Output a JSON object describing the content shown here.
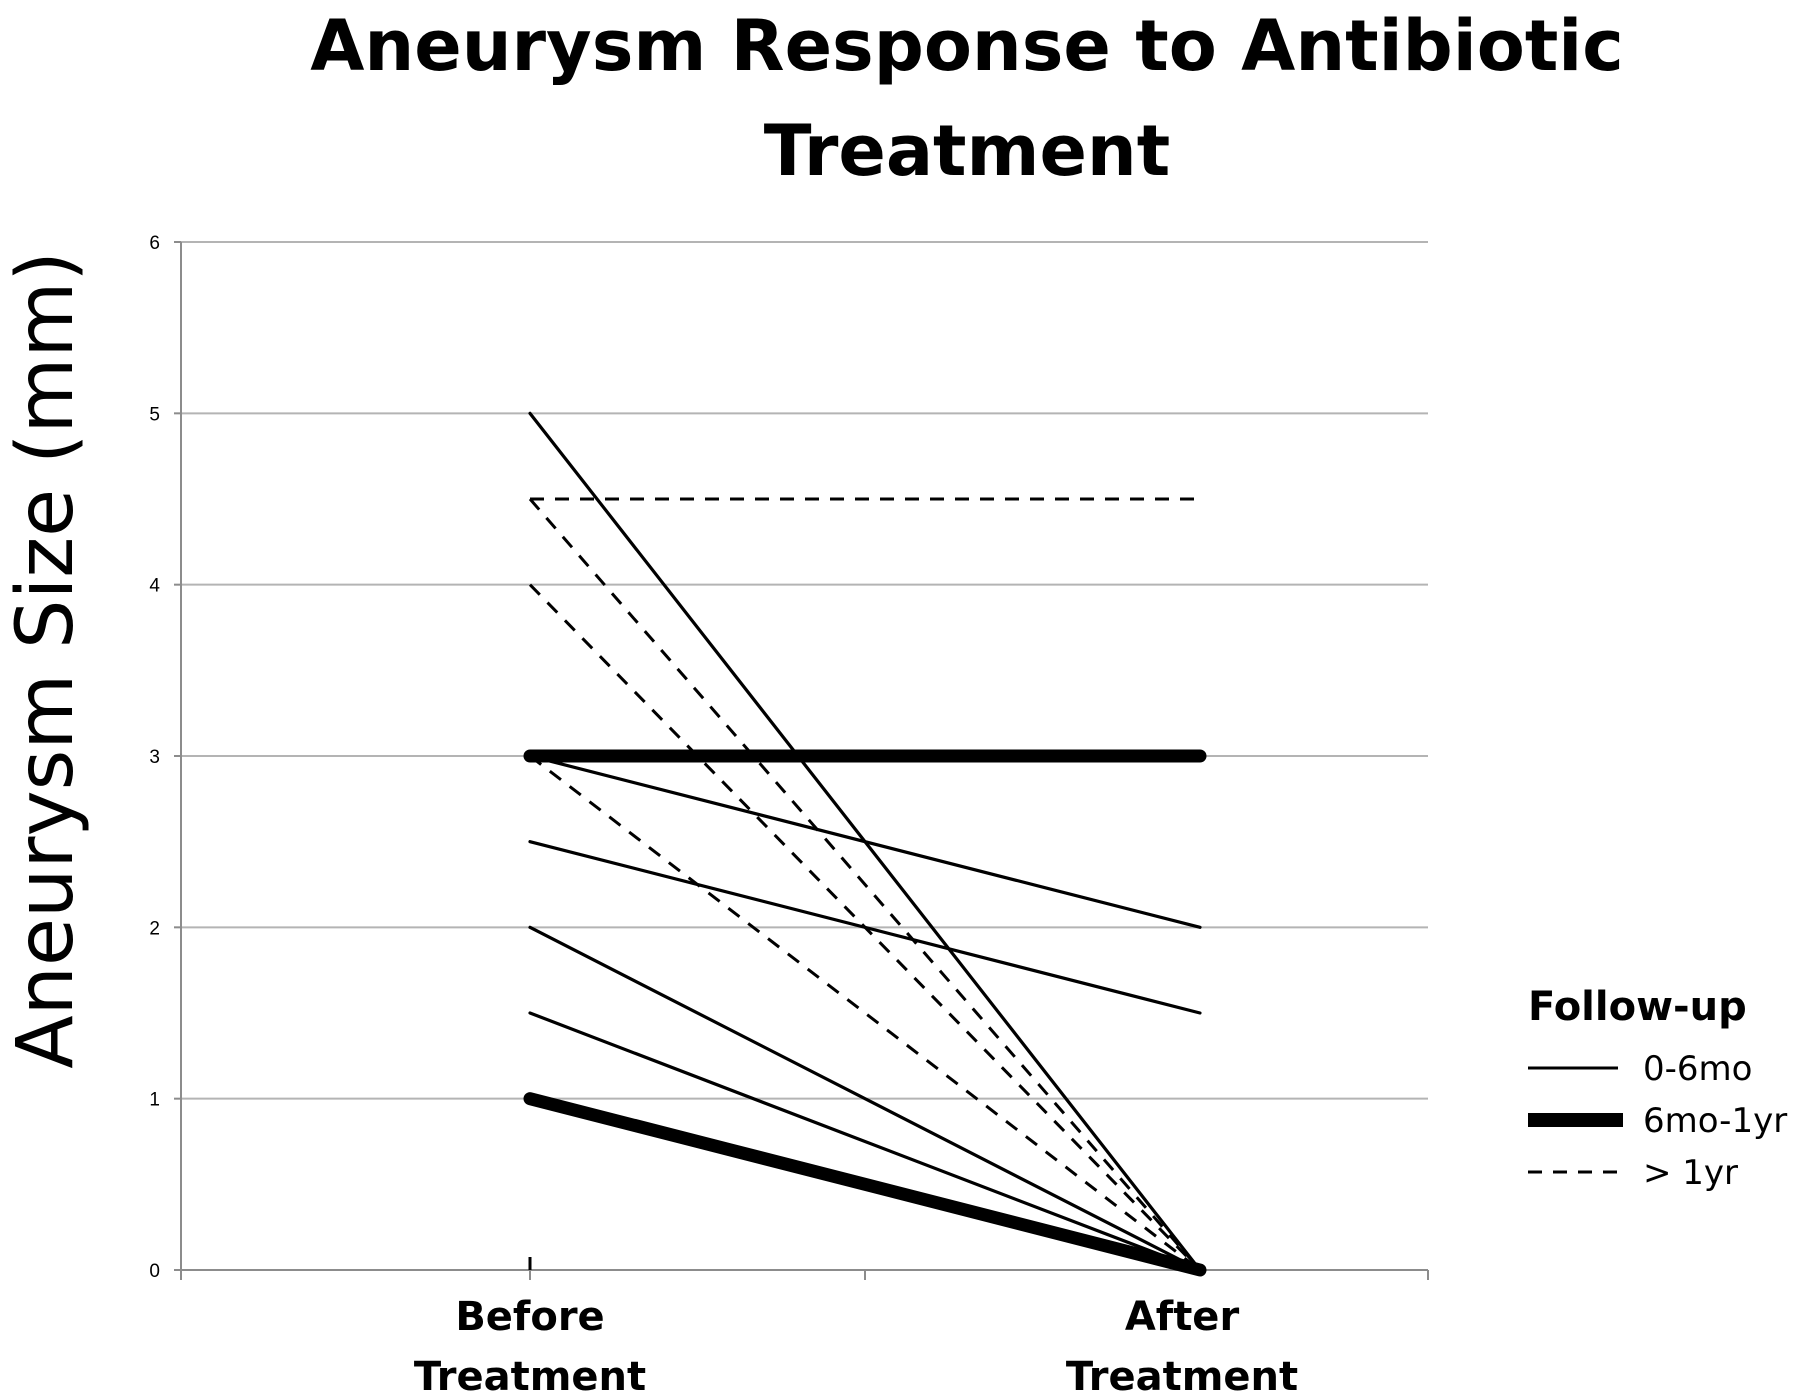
{
  "chart_data": {
    "type": "line",
    "title_lines": [
      "Aneurysm Response to Antibiotic",
      "Treatment"
    ],
    "ylabel": "Aneurysm Size (mm)",
    "ylim": [
      0,
      6
    ],
    "yticks": [
      0,
      1,
      2,
      3,
      4,
      5,
      6
    ],
    "categories": [
      {
        "lines": [
          "Before",
          "Treatment"
        ]
      },
      {
        "lines": [
          "After",
          "Treatment"
        ]
      }
    ],
    "grid": true,
    "legend": {
      "title": "Follow-up",
      "position": "right",
      "entries": [
        {
          "label": "0-6mo",
          "style": "solid-thin"
        },
        {
          "label": "6mo-1yr",
          "style": "solid-thick"
        },
        {
          "label": "> 1yr",
          "style": "dashed"
        }
      ]
    },
    "series": [
      {
        "group": "0-6mo",
        "values": [
          5,
          0
        ]
      },
      {
        "group": "0-6mo",
        "values": [
          3,
          2
        ]
      },
      {
        "group": "0-6mo",
        "values": [
          2.5,
          1.5
        ]
      },
      {
        "group": "0-6mo",
        "values": [
          2,
          0
        ]
      },
      {
        "group": "0-6mo",
        "values": [
          1.5,
          0
        ]
      },
      {
        "group": "6mo-1yr",
        "values": [
          3,
          3
        ]
      },
      {
        "group": "6mo-1yr",
        "values": [
          1,
          0
        ]
      },
      {
        "group": ">1yr",
        "values": [
          4.5,
          4.5
        ]
      },
      {
        "group": ">1yr",
        "values": [
          4.5,
          0
        ]
      },
      {
        "group": ">1yr",
        "values": [
          4,
          0
        ]
      },
      {
        "group": ">1yr",
        "values": [
          3,
          0
        ]
      }
    ],
    "colors": {
      "line": "#000000",
      "grid": "#b4b4b4",
      "axis": "#8c8c8c"
    }
  }
}
